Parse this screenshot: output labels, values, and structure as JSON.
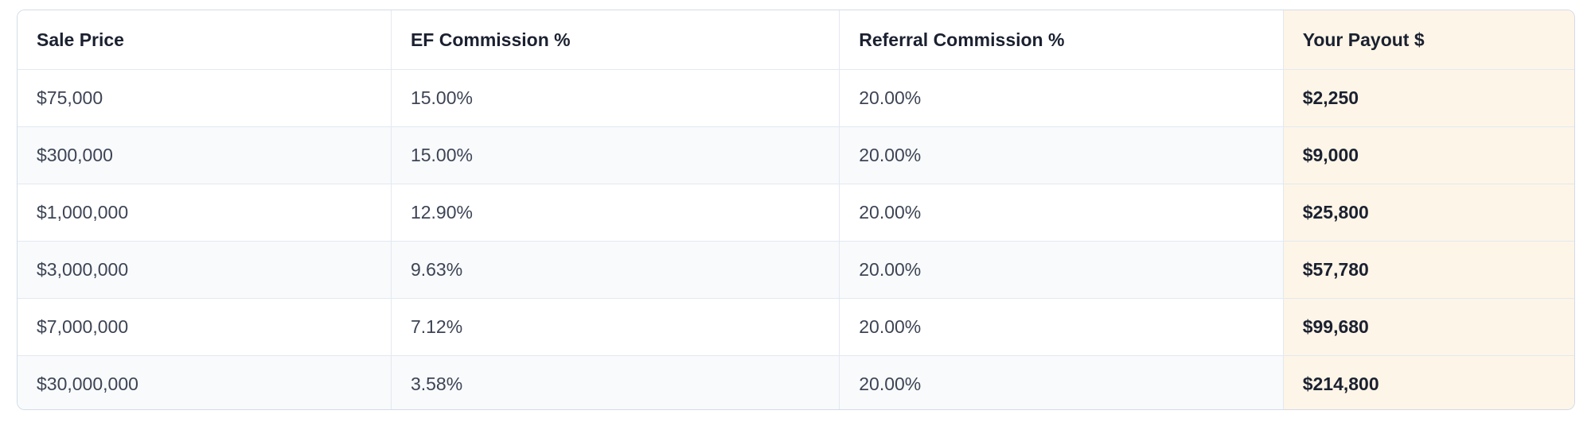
{
  "colors": {
    "page_bg": "#ffffff",
    "card_border": "#d3dce8",
    "inner_border": "#e3e9f1",
    "stripe_bg": "#f8fafc",
    "payout_bg": "#fdf5e7",
    "header_text": "#1b2130",
    "body_text": "#3d4454"
  },
  "table": {
    "headers": [
      "Sale Price",
      "EF Commission %",
      "Referral Commission %",
      "Your Payout $"
    ],
    "rows": [
      {
        "cells": [
          "$75,000",
          "15.00%",
          "20.00%",
          "$2,250"
        ]
      },
      {
        "cells": [
          "$300,000",
          "15.00%",
          "20.00%",
          "$9,000"
        ]
      },
      {
        "cells": [
          "$1,000,000",
          "12.90%",
          "20.00%",
          "$25,800"
        ]
      },
      {
        "cells": [
          "$3,000,000",
          "9.63%",
          "20.00%",
          "$57,780"
        ]
      },
      {
        "cells": [
          "$7,000,000",
          "7.12%",
          "20.00%",
          "$99,680"
        ]
      },
      {
        "cells": [
          "$30,000,000",
          "3.58%",
          "20.00%",
          "$214,800"
        ]
      }
    ]
  },
  "chart_data": {
    "type": "table",
    "columns": [
      "Sale Price",
      "EF Commission %",
      "Referral Commission %",
      "Your Payout $"
    ],
    "rows": [
      [
        "$75,000",
        "15.00%",
        "20.00%",
        "$2,250"
      ],
      [
        "$300,000",
        "15.00%",
        "20.00%",
        "$9,000"
      ],
      [
        "$1,000,000",
        "12.90%",
        "20.00%",
        "$25,800"
      ],
      [
        "$3,000,000",
        "9.63%",
        "20.00%",
        "$57,780"
      ],
      [
        "$7,000,000",
        "7.12%",
        "20.00%",
        "$99,680"
      ],
      [
        "$30,000,000",
        "3.58%",
        "20.00%",
        "$214,800"
      ]
    ],
    "numeric": {
      "sale_price": [
        75000,
        300000,
        1000000,
        3000000,
        7000000,
        30000000
      ],
      "ef_commission_pct": [
        15.0,
        15.0,
        12.9,
        9.63,
        7.12,
        3.58
      ],
      "referral_commission_pct": [
        20.0,
        20.0,
        20.0,
        20.0,
        20.0,
        20.0
      ],
      "your_payout": [
        2250,
        9000,
        25800,
        57780,
        99680,
        214800
      ]
    },
    "highlighted_column": "Your Payout $",
    "striped_row_indexes": [
      1,
      3,
      5
    ]
  }
}
